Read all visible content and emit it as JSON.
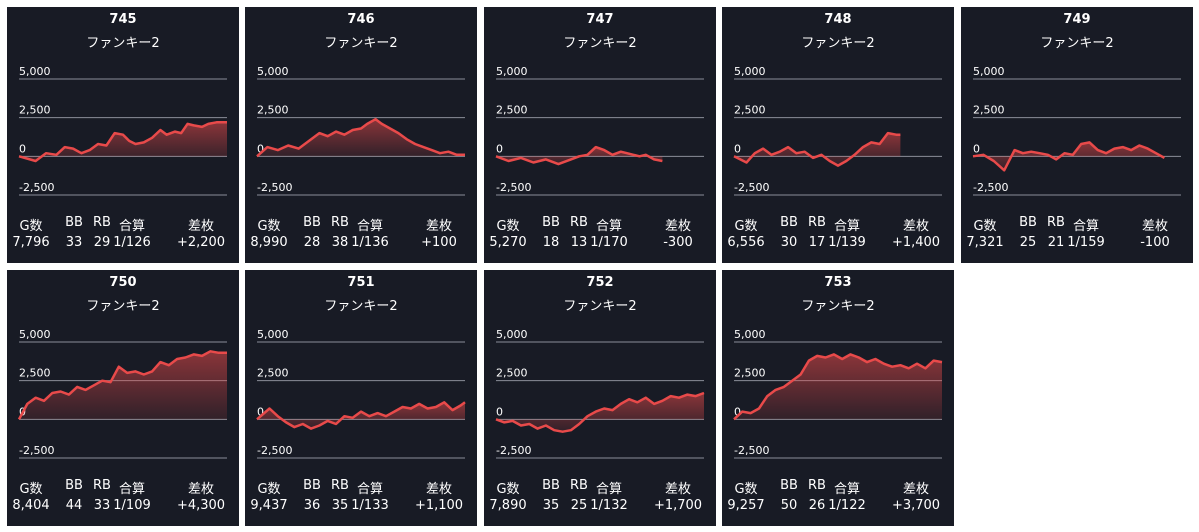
{
  "model": "ファンキー2",
  "stat_headers": [
    "G数",
    "BB",
    "RB",
    "合算",
    "差枚"
  ],
  "y_tick_labels": [
    "5,000",
    "2,500",
    "0",
    "-2,500"
  ],
  "colors": {
    "background": "#181b25",
    "line": "#e84a4a",
    "grid": "#8a8e99",
    "text": "#ffffff"
  },
  "machines": [
    {
      "id": "745",
      "stats": [
        "7,796",
        "33",
        "29",
        "1/126",
        "+2,200"
      ]
    },
    {
      "id": "746",
      "stats": [
        "8,990",
        "28",
        "38",
        "1/136",
        "+100"
      ]
    },
    {
      "id": "747",
      "stats": [
        "5,270",
        "18",
        "13",
        "1/170",
        "-300"
      ]
    },
    {
      "id": "748",
      "stats": [
        "6,556",
        "30",
        "17",
        "1/139",
        "+1,400"
      ]
    },
    {
      "id": "749",
      "stats": [
        "7,321",
        "25",
        "21",
        "1/159",
        "-100"
      ]
    },
    {
      "id": "750",
      "stats": [
        "8,404",
        "44",
        "33",
        "1/109",
        "+4,300"
      ]
    },
    {
      "id": "751",
      "stats": [
        "9,437",
        "36",
        "35",
        "1/133",
        "+1,100"
      ]
    },
    {
      "id": "752",
      "stats": [
        "7,890",
        "35",
        "25",
        "1/132",
        "+1,700"
      ]
    },
    {
      "id": "753",
      "stats": [
        "9,257",
        "50",
        "26",
        "1/122",
        "+3,700"
      ]
    }
  ],
  "chart_data": [
    {
      "type": "area",
      "machine": "745",
      "ylim": [
        -2500,
        5000
      ],
      "yticks": [
        5000,
        2500,
        0,
        -2500
      ],
      "grid": true,
      "x": [
        0,
        0.08,
        0.13,
        0.18,
        0.22,
        0.26,
        0.3,
        0.34,
        0.38,
        0.42,
        0.46,
        0.5,
        0.53,
        0.56,
        0.6,
        0.64,
        0.68,
        0.71,
        0.75,
        0.78,
        0.81,
        0.84,
        0.88,
        0.91,
        0.95,
        1.0
      ],
      "y": [
        0,
        -300,
        200,
        100,
        600,
        500,
        200,
        400,
        800,
        700,
        1500,
        1400,
        1000,
        800,
        900,
        1200,
        1700,
        1400,
        1600,
        1500,
        2100,
        2000,
        1900,
        2100,
        2200,
        2200
      ]
    },
    {
      "type": "area",
      "machine": "746",
      "ylim": [
        -2500,
        5000
      ],
      "yticks": [
        5000,
        2500,
        0,
        -2500
      ],
      "grid": true,
      "x": [
        0,
        0.05,
        0.1,
        0.15,
        0.2,
        0.25,
        0.3,
        0.34,
        0.38,
        0.42,
        0.46,
        0.5,
        0.53,
        0.57,
        0.6,
        0.64,
        0.68,
        0.72,
        0.76,
        0.8,
        0.84,
        0.88,
        0.92,
        0.96,
        1.0
      ],
      "y": [
        0,
        600,
        400,
        700,
        500,
        1000,
        1500,
        1300,
        1600,
        1400,
        1700,
        1800,
        2100,
        2400,
        2100,
        1800,
        1500,
        1100,
        800,
        600,
        400,
        200,
        300,
        100,
        100
      ]
    },
    {
      "type": "area",
      "machine": "747",
      "ylim": [
        -2500,
        5000
      ],
      "yticks": [
        5000,
        2500,
        0,
        -2500
      ],
      "grid": true,
      "x": [
        0,
        0.06,
        0.12,
        0.18,
        0.24,
        0.3,
        0.36,
        0.4,
        0.44,
        0.48,
        0.52,
        0.56,
        0.6,
        0.63,
        0.66,
        0.69,
        0.72,
        0.76,
        0.8
      ],
      "y": [
        0,
        -300,
        -100,
        -400,
        -200,
        -500,
        -200,
        0,
        100,
        600,
        400,
        100,
        300,
        200,
        100,
        0,
        100,
        -200,
        -300
      ]
    },
    {
      "type": "area",
      "machine": "748",
      "ylim": [
        -2500,
        5000
      ],
      "yticks": [
        5000,
        2500,
        0,
        -2500
      ],
      "grid": true,
      "x": [
        0,
        0.06,
        0.1,
        0.14,
        0.18,
        0.22,
        0.26,
        0.3,
        0.34,
        0.38,
        0.42,
        0.46,
        0.5,
        0.54,
        0.58,
        0.62,
        0.66,
        0.7,
        0.74,
        0.78,
        0.8
      ],
      "y": [
        0,
        -400,
        200,
        500,
        100,
        300,
        600,
        200,
        300,
        -100,
        100,
        -300,
        -600,
        -300,
        100,
        600,
        900,
        800,
        1500,
        1400,
        1400
      ]
    },
    {
      "type": "area",
      "machine": "749",
      "ylim": [
        -2500,
        5000
      ],
      "yticks": [
        5000,
        2500,
        0,
        -2500
      ],
      "grid": true,
      "x": [
        0,
        0.05,
        0.1,
        0.15,
        0.2,
        0.24,
        0.28,
        0.32,
        0.36,
        0.4,
        0.44,
        0.48,
        0.52,
        0.56,
        0.6,
        0.64,
        0.68,
        0.72,
        0.76,
        0.8,
        0.84,
        0.88,
        0.92
      ],
      "y": [
        0,
        100,
        -300,
        -900,
        400,
        200,
        300,
        200,
        100,
        -200,
        200,
        100,
        800,
        900,
        400,
        200,
        500,
        600,
        400,
        700,
        500,
        200,
        -100
      ]
    },
    {
      "type": "area",
      "machine": "750",
      "ylim": [
        -2500,
        5000
      ],
      "yticks": [
        5000,
        2500,
        0,
        -2500
      ],
      "grid": true,
      "x": [
        0,
        0.04,
        0.08,
        0.12,
        0.16,
        0.2,
        0.24,
        0.28,
        0.32,
        0.36,
        0.4,
        0.44,
        0.48,
        0.52,
        0.56,
        0.6,
        0.64,
        0.68,
        0.72,
        0.76,
        0.8,
        0.84,
        0.88,
        0.92,
        0.96,
        1.0
      ],
      "y": [
        0,
        1000,
        1400,
        1200,
        1700,
        1800,
        1600,
        2100,
        1900,
        2200,
        2500,
        2400,
        3400,
        3000,
        3100,
        2900,
        3100,
        3700,
        3500,
        3900,
        4000,
        4200,
        4100,
        4400,
        4300,
        4300
      ]
    },
    {
      "type": "area",
      "machine": "751",
      "ylim": [
        -2500,
        5000
      ],
      "yticks": [
        5000,
        2500,
        0,
        -2500
      ],
      "grid": true,
      "x": [
        0,
        0.06,
        0.1,
        0.14,
        0.18,
        0.22,
        0.26,
        0.3,
        0.34,
        0.38,
        0.42,
        0.46,
        0.5,
        0.54,
        0.58,
        0.62,
        0.66,
        0.7,
        0.74,
        0.78,
        0.82,
        0.86,
        0.9,
        0.94,
        0.98,
        1.0
      ],
      "y": [
        0,
        700,
        200,
        -200,
        -500,
        -300,
        -600,
        -400,
        -100,
        -300,
        200,
        100,
        500,
        200,
        400,
        200,
        500,
        800,
        700,
        1000,
        700,
        800,
        1100,
        600,
        900,
        1100
      ]
    },
    {
      "type": "area",
      "machine": "752",
      "ylim": [
        -2500,
        5000
      ],
      "yticks": [
        5000,
        2500,
        0,
        -2500
      ],
      "grid": true,
      "x": [
        0,
        0.04,
        0.08,
        0.12,
        0.16,
        0.2,
        0.24,
        0.28,
        0.32,
        0.36,
        0.4,
        0.44,
        0.48,
        0.52,
        0.56,
        0.6,
        0.64,
        0.68,
        0.72,
        0.76,
        0.8,
        0.84,
        0.88,
        0.92,
        0.96,
        1.0
      ],
      "y": [
        0,
        -200,
        -100,
        -400,
        -300,
        -600,
        -400,
        -700,
        -800,
        -700,
        -300,
        200,
        500,
        700,
        600,
        1000,
        1300,
        1100,
        1400,
        1000,
        1200,
        1500,
        1400,
        1600,
        1500,
        1700
      ]
    },
    {
      "type": "area",
      "machine": "753",
      "ylim": [
        -2500,
        5000
      ],
      "yticks": [
        5000,
        2500,
        0,
        -2500
      ],
      "grid": true,
      "x": [
        0,
        0.04,
        0.08,
        0.12,
        0.16,
        0.2,
        0.24,
        0.28,
        0.32,
        0.36,
        0.4,
        0.44,
        0.48,
        0.52,
        0.56,
        0.6,
        0.64,
        0.68,
        0.72,
        0.76,
        0.8,
        0.84,
        0.88,
        0.92,
        0.96,
        1.0
      ],
      "y": [
        0,
        500,
        400,
        700,
        1500,
        1900,
        2100,
        2500,
        2900,
        3800,
        4100,
        4000,
        4200,
        3900,
        4200,
        4000,
        3700,
        3900,
        3600,
        3400,
        3500,
        3300,
        3600,
        3300,
        3800,
        3700
      ]
    }
  ]
}
